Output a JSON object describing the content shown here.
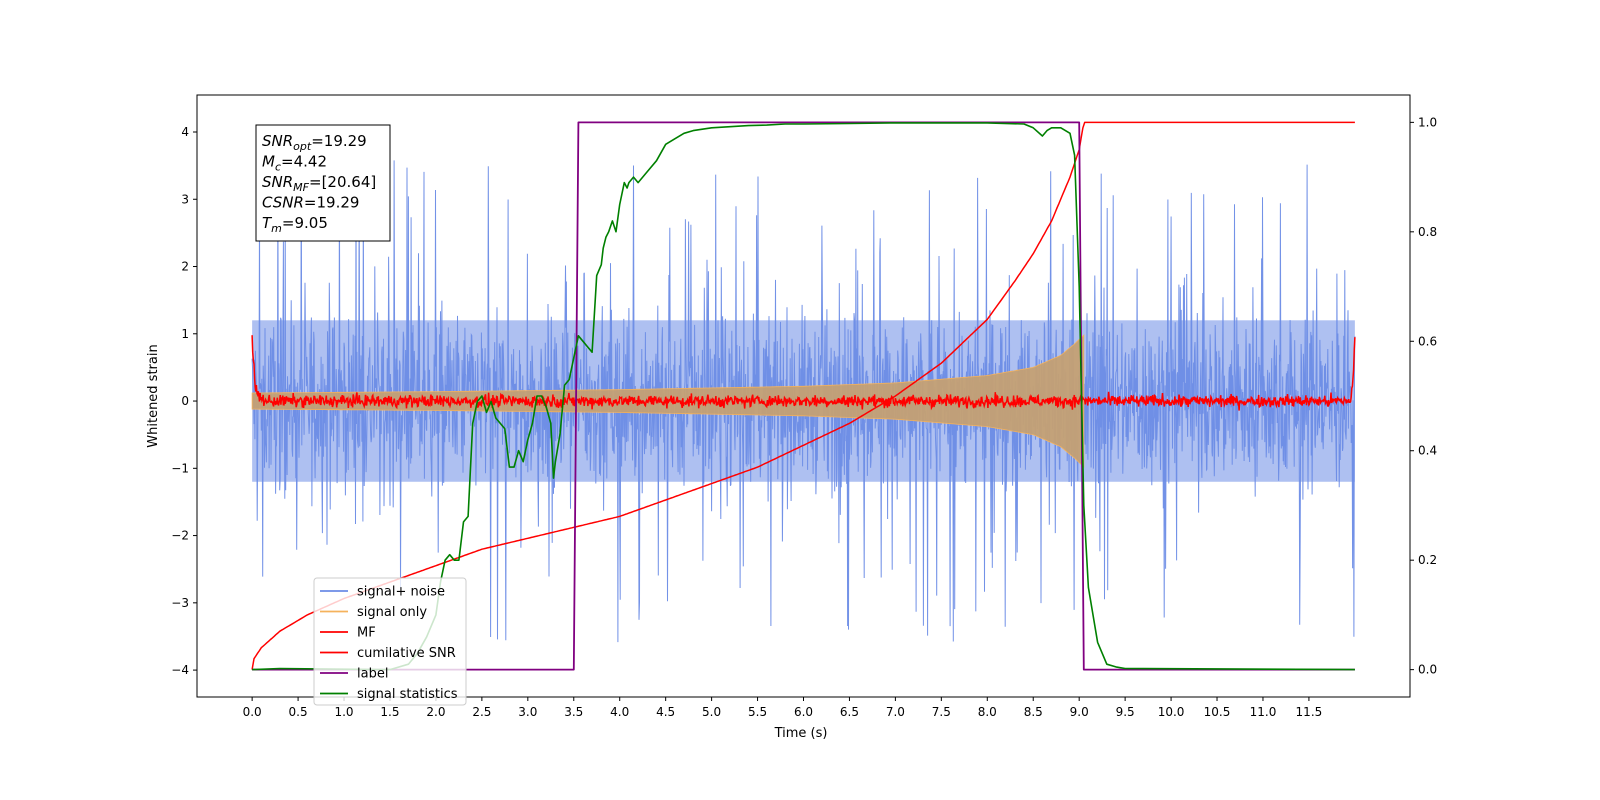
{
  "chart_data": {
    "type": "line",
    "title": "",
    "xlabel": "Time (s)",
    "ylabel": "Whitened strain",
    "xlim": [
      -0.6,
      12.6
    ],
    "ylim_left": [
      -4.4,
      4.55
    ],
    "ylim_right": [
      -0.05,
      1.05
    ],
    "grid": false,
    "x_ticks": [
      "0.0",
      "0.5",
      "1.0",
      "1.5",
      "2.0",
      "2.5",
      "3.0",
      "3.5",
      "4.0",
      "4.5",
      "5.0",
      "5.5",
      "6.0",
      "6.5",
      "7.0",
      "7.5",
      "8.0",
      "8.5",
      "9.0",
      "9.5",
      "10.0",
      "10.5",
      "11.0",
      "11.5"
    ],
    "y_ticks_left": [
      "−4",
      "−3",
      "−2",
      "−1",
      "0",
      "1",
      "2",
      "3",
      "4"
    ],
    "y_ticks_right": [
      "0.0",
      "0.2",
      "0.4",
      "0.6",
      "0.8",
      "1.0"
    ],
    "legend_position": "lower-left",
    "legend": [
      "signal+ noise",
      "signal only",
      "MF",
      "cumilative SNR",
      "label",
      "signal statistics"
    ],
    "annotation": {
      "lines": [
        {
          "sym": "SNR",
          "sub": "opt",
          "value": "=19.29"
        },
        {
          "sym": "M",
          "sub": "c",
          "value": "=4.42"
        },
        {
          "sym": "SNR",
          "sub": "MF",
          "value": "=[20.64]"
        },
        {
          "sym": "CSNR",
          "sub": "",
          "value": "=19.29"
        },
        {
          "sym": "T",
          "sub": "m",
          "value": "=9.05"
        }
      ]
    },
    "colors": {
      "noise": "#6c8ce6",
      "signal": "#f5b25c",
      "mf": "#ff0000",
      "csnr": "#ff0000",
      "label": "#800080",
      "stat": "#008000"
    },
    "series": [
      {
        "name": "label",
        "axis": "right",
        "points": [
          [
            0.0,
            0.0
          ],
          [
            3.5,
            0.0
          ],
          [
            3.55,
            1.0
          ],
          [
            9.0,
            1.0
          ],
          [
            9.05,
            0.0
          ],
          [
            12.0,
            0.0
          ]
        ]
      },
      {
        "name": "signal statistics",
        "axis": "right",
        "points": [
          [
            0.0,
            0.0
          ],
          [
            0.3,
            0.002
          ],
          [
            1.5,
            0.0
          ],
          [
            1.7,
            0.01
          ],
          [
            1.8,
            0.03
          ],
          [
            1.9,
            0.06
          ],
          [
            2.0,
            0.1
          ],
          [
            2.05,
            0.16
          ],
          [
            2.1,
            0.2
          ],
          [
            2.15,
            0.21
          ],
          [
            2.2,
            0.2
          ],
          [
            2.25,
            0.2
          ],
          [
            2.3,
            0.27
          ],
          [
            2.35,
            0.28
          ],
          [
            2.4,
            0.45
          ],
          [
            2.45,
            0.49
          ],
          [
            2.5,
            0.5
          ],
          [
            2.55,
            0.47
          ],
          [
            2.6,
            0.49
          ],
          [
            2.65,
            0.46
          ],
          [
            2.7,
            0.45
          ],
          [
            2.75,
            0.44
          ],
          [
            2.8,
            0.37
          ],
          [
            2.85,
            0.37
          ],
          [
            2.9,
            0.4
          ],
          [
            2.95,
            0.38
          ],
          [
            3.0,
            0.42
          ],
          [
            3.05,
            0.45
          ],
          [
            3.1,
            0.5
          ],
          [
            3.15,
            0.5
          ],
          [
            3.2,
            0.48
          ],
          [
            3.25,
            0.45
          ],
          [
            3.28,
            0.35
          ],
          [
            3.3,
            0.38
          ],
          [
            3.35,
            0.43
          ],
          [
            3.4,
            0.52
          ],
          [
            3.45,
            0.53
          ],
          [
            3.55,
            0.61
          ],
          [
            3.6,
            0.6
          ],
          [
            3.65,
            0.59
          ],
          [
            3.7,
            0.58
          ],
          [
            3.75,
            0.72
          ],
          [
            3.8,
            0.74
          ],
          [
            3.82,
            0.77
          ],
          [
            3.85,
            0.79
          ],
          [
            3.88,
            0.8
          ],
          [
            3.92,
            0.82
          ],
          [
            3.96,
            0.8
          ],
          [
            4.0,
            0.85
          ],
          [
            4.05,
            0.89
          ],
          [
            4.08,
            0.88
          ],
          [
            4.1,
            0.89
          ],
          [
            4.15,
            0.9
          ],
          [
            4.2,
            0.89
          ],
          [
            4.3,
            0.91
          ],
          [
            4.4,
            0.93
          ],
          [
            4.5,
            0.96
          ],
          [
            4.6,
            0.97
          ],
          [
            4.7,
            0.98
          ],
          [
            4.8,
            0.985
          ],
          [
            5.0,
            0.99
          ],
          [
            5.2,
            0.992
          ],
          [
            5.4,
            0.994
          ],
          [
            5.6,
            0.995
          ],
          [
            5.8,
            0.997
          ],
          [
            6.0,
            0.997
          ],
          [
            6.5,
            0.998
          ],
          [
            7.0,
            0.999
          ],
          [
            8.0,
            0.999
          ],
          [
            8.4,
            0.997
          ],
          [
            8.5,
            0.99
          ],
          [
            8.6,
            0.975
          ],
          [
            8.65,
            0.985
          ],
          [
            8.7,
            0.99
          ],
          [
            8.8,
            0.99
          ],
          [
            8.9,
            0.98
          ],
          [
            8.95,
            0.94
          ],
          [
            9.0,
            0.7
          ],
          [
            9.05,
            0.3
          ],
          [
            9.1,
            0.15
          ],
          [
            9.2,
            0.05
          ],
          [
            9.3,
            0.01
          ],
          [
            9.4,
            0.005
          ],
          [
            9.5,
            0.002
          ],
          [
            12.0,
            0.0
          ]
        ]
      },
      {
        "name": "cumilative SNR",
        "axis": "right",
        "points": [
          [
            0.0,
            0.0
          ],
          [
            0.02,
            0.02
          ],
          [
            0.1,
            0.04
          ],
          [
            0.3,
            0.07
          ],
          [
            0.6,
            0.1
          ],
          [
            1.0,
            0.13
          ],
          [
            1.5,
            0.16
          ],
          [
            2.0,
            0.19
          ],
          [
            2.5,
            0.22
          ],
          [
            3.0,
            0.24
          ],
          [
            3.5,
            0.26
          ],
          [
            4.0,
            0.28
          ],
          [
            4.5,
            0.31
          ],
          [
            5.0,
            0.34
          ],
          [
            5.5,
            0.37
          ],
          [
            6.0,
            0.41
          ],
          [
            6.5,
            0.45
          ],
          [
            7.0,
            0.5
          ],
          [
            7.5,
            0.56
          ],
          [
            8.0,
            0.64
          ],
          [
            8.3,
            0.71
          ],
          [
            8.5,
            0.76
          ],
          [
            8.7,
            0.82
          ],
          [
            8.9,
            0.9
          ],
          [
            9.0,
            0.95
          ],
          [
            9.05,
            1.0
          ],
          [
            12.0,
            1.0
          ]
        ]
      },
      {
        "name": "signal only",
        "axis": "left",
        "envelope": [
          [
            0.0,
            0.12
          ],
          [
            2.0,
            0.14
          ],
          [
            4.0,
            0.17
          ],
          [
            6.0,
            0.22
          ],
          [
            7.0,
            0.27
          ],
          [
            8.0,
            0.38
          ],
          [
            8.5,
            0.5
          ],
          [
            8.8,
            0.68
          ],
          [
            8.95,
            0.85
          ],
          [
            9.05,
            0.98
          ],
          [
            9.06,
            0.0
          ],
          [
            12.0,
            0.0
          ]
        ]
      },
      {
        "name": "signal+ noise",
        "axis": "left",
        "band": [
          -1.2,
          1.2
        ],
        "spike_range": [
          -3.7,
          3.6
        ]
      },
      {
        "name": "MF",
        "axis": "left",
        "points": [
          [
            0.0,
            1.0
          ],
          [
            0.03,
            0.2
          ],
          [
            0.08,
            0.05
          ],
          [
            0.15,
            0.0
          ],
          [
            11.95,
            0.0
          ],
          [
            11.98,
            0.3
          ],
          [
            12.0,
            0.9
          ]
        ],
        "noise_amp": 0.045
      }
    ]
  }
}
